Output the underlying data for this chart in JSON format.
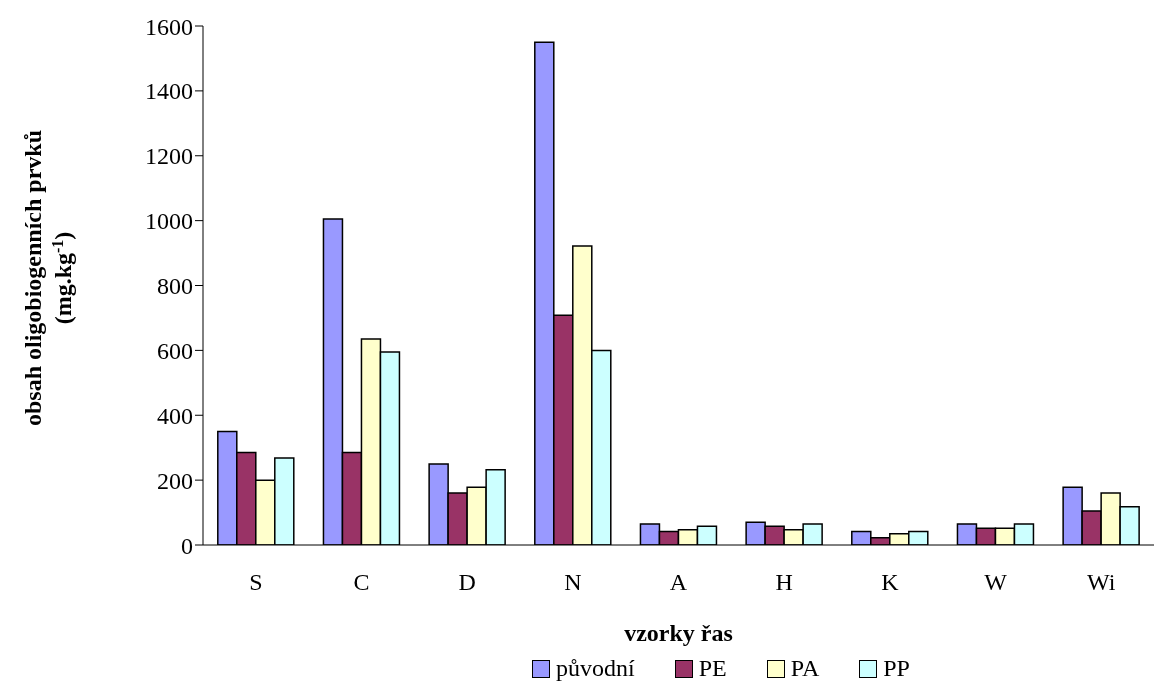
{
  "chart_data": {
    "type": "bar",
    "xlabel": "vzorky řas",
    "ylabel": "obsah oligobiogenních prvků\n(mg.kg$^{-1}$)",
    "categories": [
      "S",
      "C",
      "D",
      "N",
      "A",
      "H",
      "K",
      "W",
      "Wi"
    ],
    "series": [
      {
        "name": "původní",
        "color": "#9999ff",
        "values": [
          350,
          1005,
          250,
          1550,
          65,
          70,
          42,
          65,
          178
        ]
      },
      {
        "name": "PE",
        "color": "#993366",
        "values": [
          285,
          285,
          160,
          708,
          42,
          58,
          22,
          52,
          105
        ]
      },
      {
        "name": "PA",
        "color": "#ffffcc",
        "values": [
          200,
          635,
          178,
          922,
          47,
          47,
          35,
          52,
          160
        ]
      },
      {
        "name": "PP",
        "color": "#ccffff",
        "values": [
          268,
          595,
          232,
          600,
          58,
          65,
          42,
          65,
          118
        ]
      }
    ],
    "ylim": [
      0,
      1600
    ],
    "yticks": [
      0,
      200,
      400,
      600,
      800,
      1000,
      1200,
      1400,
      1600
    ],
    "grid": false,
    "legend": "bottom"
  }
}
